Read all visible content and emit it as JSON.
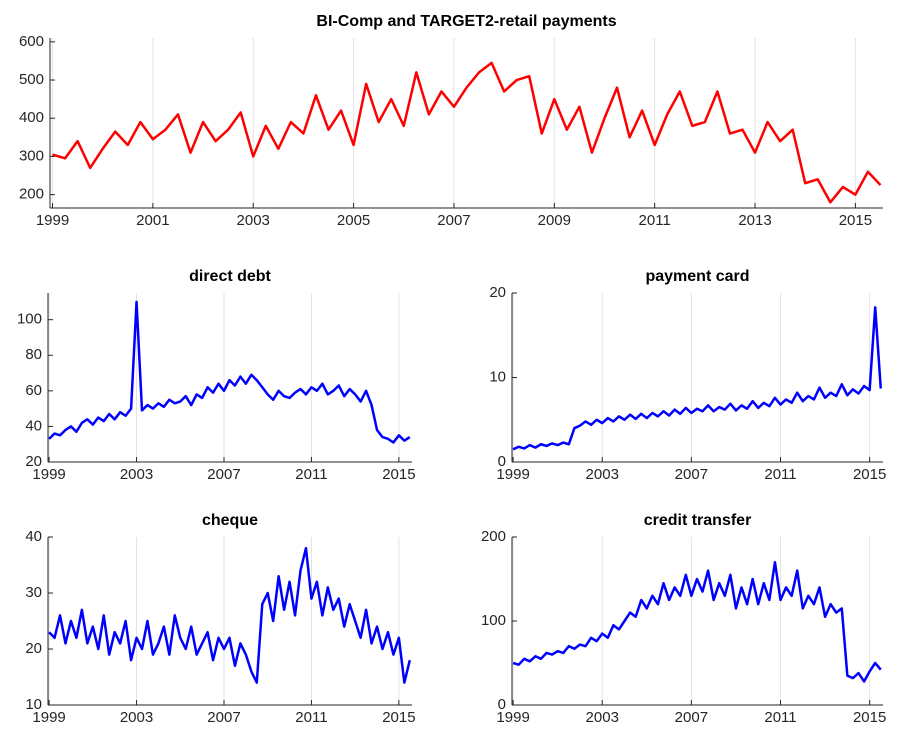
{
  "chart_data": [
    {
      "type": "line",
      "title": "BI-Comp and TARGET2-retail payments",
      "color": "#ff0000",
      "grid": true,
      "x": [
        1999,
        1999.25,
        1999.5,
        1999.75,
        2000,
        2000.25,
        2000.5,
        2000.75,
        2001,
        2001.25,
        2001.5,
        2001.75,
        2002,
        2002.25,
        2002.5,
        2002.75,
        2003,
        2003.25,
        2003.5,
        2003.75,
        2004,
        2004.25,
        2004.5,
        2004.75,
        2005,
        2005.25,
        2005.5,
        2005.75,
        2006,
        2006.25,
        2006.5,
        2006.75,
        2007,
        2007.25,
        2007.5,
        2007.75,
        2008,
        2008.25,
        2008.5,
        2008.75,
        2009,
        2009.25,
        2009.5,
        2009.75,
        2010,
        2010.25,
        2010.5,
        2010.75,
        2011,
        2011.25,
        2011.5,
        2011.75,
        2012,
        2012.25,
        2012.5,
        2012.75,
        2013,
        2013.25,
        2013.5,
        2013.75,
        2014,
        2014.25,
        2014.5,
        2014.75,
        2015,
        2015.25,
        2015.5
      ],
      "values": [
        305,
        295,
        340,
        270,
        320,
        365,
        330,
        390,
        345,
        370,
        410,
        310,
        390,
        340,
        370,
        415,
        300,
        380,
        320,
        390,
        360,
        460,
        370,
        420,
        330,
        490,
        390,
        450,
        380,
        520,
        410,
        470,
        430,
        480,
        520,
        545,
        470,
        500,
        510,
        360,
        450,
        370,
        430,
        310,
        400,
        480,
        350,
        420,
        330,
        410,
        470,
        380,
        390,
        470,
        360,
        370,
        310,
        390,
        340,
        370,
        230,
        240,
        180,
        220,
        200,
        260,
        225
      ],
      "xlim": [
        1998.95,
        2015.55
      ],
      "ylim": [
        165,
        610
      ],
      "xticks": [
        1999,
        2001,
        2003,
        2005,
        2007,
        2009,
        2011,
        2013,
        2015
      ],
      "yticks": [
        200,
        300,
        400,
        500,
        600
      ]
    },
    {
      "type": "line",
      "title": "direct debt",
      "color": "#0000ff",
      "grid": true,
      "x": [
        1999,
        1999.25,
        1999.5,
        1999.75,
        2000,
        2000.25,
        2000.5,
        2000.75,
        2001,
        2001.25,
        2001.5,
        2001.75,
        2002,
        2002.25,
        2002.5,
        2002.75,
        2003,
        2003.25,
        2003.5,
        2003.75,
        2004,
        2004.25,
        2004.5,
        2004.75,
        2005,
        2005.25,
        2005.5,
        2005.75,
        2006,
        2006.25,
        2006.5,
        2006.75,
        2007,
        2007.25,
        2007.5,
        2007.75,
        2008,
        2008.25,
        2008.5,
        2008.75,
        2009,
        2009.25,
        2009.5,
        2009.75,
        2010,
        2010.25,
        2010.5,
        2010.75,
        2011,
        2011.25,
        2011.5,
        2011.75,
        2012,
        2012.25,
        2012.5,
        2012.75,
        2013,
        2013.25,
        2013.5,
        2013.75,
        2014,
        2014.25,
        2014.5,
        2014.75,
        2015,
        2015.25,
        2015.5
      ],
      "values": [
        33,
        36,
        35,
        38,
        40,
        37,
        42,
        44,
        41,
        45,
        43,
        47,
        44,
        48,
        46,
        50,
        110,
        49,
        52,
        50,
        53,
        51,
        55,
        53,
        54,
        57,
        52,
        58,
        56,
        62,
        59,
        64,
        60,
        66,
        63,
        68,
        64,
        69,
        66,
        62,
        58,
        55,
        60,
        57,
        56,
        59,
        61,
        58,
        62,
        60,
        64,
        58,
        60,
        63,
        57,
        61,
        58,
        54,
        60,
        52,
        38,
        34,
        33,
        31,
        35,
        32,
        34
      ],
      "xlim": [
        1998.95,
        2015.6
      ],
      "ylim": [
        20,
        115
      ],
      "xticks": [
        1999,
        2003,
        2007,
        2011,
        2015
      ],
      "yticks": [
        20,
        40,
        60,
        80,
        100
      ]
    },
    {
      "type": "line",
      "title": "payment card",
      "color": "#0000ff",
      "grid": true,
      "x": [
        1999,
        1999.25,
        1999.5,
        1999.75,
        2000,
        2000.25,
        2000.5,
        2000.75,
        2001,
        2001.25,
        2001.5,
        2001.75,
        2002,
        2002.25,
        2002.5,
        2002.75,
        2003,
        2003.25,
        2003.5,
        2003.75,
        2004,
        2004.25,
        2004.5,
        2004.75,
        2005,
        2005.25,
        2005.5,
        2005.75,
        2006,
        2006.25,
        2006.5,
        2006.75,
        2007,
        2007.25,
        2007.5,
        2007.75,
        2008,
        2008.25,
        2008.5,
        2008.75,
        2009,
        2009.25,
        2009.5,
        2009.75,
        2010,
        2010.25,
        2010.5,
        2010.75,
        2011,
        2011.25,
        2011.5,
        2011.75,
        2012,
        2012.25,
        2012.5,
        2012.75,
        2013,
        2013.25,
        2013.5,
        2013.75,
        2014,
        2014.25,
        2014.5,
        2014.75,
        2015,
        2015.25,
        2015.5
      ],
      "values": [
        1.5,
        1.8,
        1.6,
        2.0,
        1.7,
        2.1,
        1.9,
        2.2,
        2.0,
        2.3,
        2.1,
        4.0,
        4.3,
        4.8,
        4.4,
        5.0,
        4.6,
        5.2,
        4.8,
        5.4,
        5.0,
        5.6,
        5.1,
        5.7,
        5.2,
        5.8,
        5.4,
        6.0,
        5.5,
        6.2,
        5.7,
        6.4,
        5.8,
        6.3,
        6.0,
        6.7,
        6.0,
        6.5,
        6.2,
        6.9,
        6.1,
        6.7,
        6.3,
        7.2,
        6.4,
        7.0,
        6.6,
        7.6,
        6.8,
        7.4,
        7.0,
        8.2,
        7.2,
        7.8,
        7.4,
        8.8,
        7.6,
        8.2,
        7.8,
        9.2,
        7.9,
        8.6,
        8.1,
        9.0,
        8.5,
        18.3,
        8.7
      ],
      "xlim": [
        1998.95,
        2015.6
      ],
      "ylim": [
        0,
        20
      ],
      "xticks": [
        1999,
        2003,
        2007,
        2011,
        2015
      ],
      "yticks": [
        0,
        10,
        20
      ]
    },
    {
      "type": "line",
      "title": "cheque",
      "color": "#0000ff",
      "grid": true,
      "x": [
        1999,
        1999.25,
        1999.5,
        1999.75,
        2000,
        2000.25,
        2000.5,
        2000.75,
        2001,
        2001.25,
        2001.5,
        2001.75,
        2002,
        2002.25,
        2002.5,
        2002.75,
        2003,
        2003.25,
        2003.5,
        2003.75,
        2004,
        2004.25,
        2004.5,
        2004.75,
        2005,
        2005.25,
        2005.5,
        2005.75,
        2006,
        2006.25,
        2006.5,
        2006.75,
        2007,
        2007.25,
        2007.5,
        2007.75,
        2008,
        2008.25,
        2008.5,
        2008.75,
        2009,
        2009.25,
        2009.5,
        2009.75,
        2010,
        2010.25,
        2010.5,
        2010.75,
        2011,
        2011.25,
        2011.5,
        2011.75,
        2012,
        2012.25,
        2012.5,
        2012.75,
        2013,
        2013.25,
        2013.5,
        2013.75,
        2014,
        2014.25,
        2014.5,
        2014.75,
        2015,
        2015.25,
        2015.5
      ],
      "values": [
        23,
        22,
        26,
        21,
        25,
        22,
        27,
        21,
        24,
        20,
        26,
        19,
        23,
        21,
        25,
        18,
        22,
        20,
        25,
        19,
        21,
        24,
        19,
        26,
        22,
        20,
        24,
        19,
        21,
        23,
        18,
        22,
        20,
        22,
        17,
        21,
        19,
        16,
        14,
        28,
        30,
        25,
        33,
        27,
        32,
        26,
        34,
        38,
        29,
        32,
        26,
        31,
        27,
        29,
        24,
        28,
        25,
        22,
        27,
        21,
        24,
        20,
        23,
        19,
        22,
        14,
        18
      ],
      "xlim": [
        1998.95,
        2015.6
      ],
      "ylim": [
        10,
        40
      ],
      "xticks": [
        1999,
        2003,
        2007,
        2011,
        2015
      ],
      "yticks": [
        10,
        20,
        30,
        40
      ]
    },
    {
      "type": "line",
      "title": "credit transfer",
      "color": "#0000ff",
      "grid": true,
      "x": [
        1999,
        1999.25,
        1999.5,
        1999.75,
        2000,
        2000.25,
        2000.5,
        2000.75,
        2001,
        2001.25,
        2001.5,
        2001.75,
        2002,
        2002.25,
        2002.5,
        2002.75,
        2003,
        2003.25,
        2003.5,
        2003.75,
        2004,
        2004.25,
        2004.5,
        2004.75,
        2005,
        2005.25,
        2005.5,
        2005.75,
        2006,
        2006.25,
        2006.5,
        2006.75,
        2007,
        2007.25,
        2007.5,
        2007.75,
        2008,
        2008.25,
        2008.5,
        2008.75,
        2009,
        2009.25,
        2009.5,
        2009.75,
        2010,
        2010.25,
        2010.5,
        2010.75,
        2011,
        2011.25,
        2011.5,
        2011.75,
        2012,
        2012.25,
        2012.5,
        2012.75,
        2013,
        2013.25,
        2013.5,
        2013.75,
        2014,
        2014.25,
        2014.5,
        2014.75,
        2015,
        2015.25,
        2015.5
      ],
      "values": [
        50,
        48,
        55,
        52,
        58,
        55,
        62,
        60,
        64,
        62,
        70,
        67,
        72,
        70,
        80,
        76,
        85,
        80,
        95,
        90,
        100,
        110,
        105,
        125,
        115,
        130,
        120,
        145,
        125,
        140,
        130,
        155,
        130,
        150,
        135,
        160,
        125,
        145,
        130,
        155,
        115,
        140,
        120,
        150,
        120,
        145,
        125,
        170,
        125,
        140,
        130,
        160,
        115,
        130,
        120,
        140,
        105,
        120,
        110,
        115,
        35,
        32,
        38,
        28,
        40,
        50,
        42
      ],
      "xlim": [
        1998.95,
        2015.6
      ],
      "ylim": [
        0,
        200
      ],
      "xticks": [
        1999,
        2003,
        2007,
        2011,
        2015
      ],
      "yticks": [
        0,
        100,
        200
      ]
    }
  ]
}
